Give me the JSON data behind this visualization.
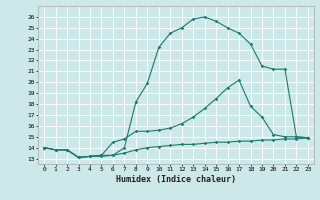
{
  "xlabel": "Humidex (Indice chaleur)",
  "bg_color": "#cce8e8",
  "line_color": "#1a7a6e",
  "grid_color": "#ffffff",
  "xlim": [
    -0.5,
    23.5
  ],
  "ylim": [
    12.5,
    27.0
  ],
  "yticks": [
    13,
    14,
    15,
    16,
    17,
    18,
    19,
    20,
    21,
    22,
    23,
    24,
    25,
    26
  ],
  "xticks": [
    0,
    1,
    2,
    3,
    4,
    5,
    6,
    7,
    8,
    9,
    10,
    11,
    12,
    13,
    14,
    15,
    16,
    17,
    18,
    19,
    20,
    21,
    22,
    23
  ],
  "series1_x": [
    0,
    1,
    2,
    3,
    4,
    5,
    6,
    7,
    8,
    9,
    10,
    11,
    12,
    13,
    14,
    15,
    16,
    17,
    18,
    19,
    20,
    21,
    22,
    23
  ],
  "series1_y": [
    14.0,
    13.8,
    13.8,
    13.1,
    13.2,
    13.2,
    13.3,
    13.5,
    13.8,
    14.0,
    14.1,
    14.2,
    14.3,
    14.3,
    14.4,
    14.5,
    14.5,
    14.6,
    14.6,
    14.7,
    14.7,
    14.8,
    14.8,
    14.9
  ],
  "series2_x": [
    0,
    1,
    2,
    3,
    4,
    5,
    6,
    7,
    8,
    9,
    10,
    11,
    12,
    13,
    14,
    15,
    16,
    17,
    18,
    19,
    20,
    21,
    22,
    23
  ],
  "series2_y": [
    14.0,
    13.8,
    13.8,
    13.1,
    13.2,
    13.3,
    14.5,
    14.8,
    15.5,
    15.5,
    15.6,
    15.8,
    16.2,
    16.8,
    17.6,
    18.5,
    19.5,
    20.2,
    17.8,
    16.8,
    15.2,
    15.0,
    15.0,
    14.9
  ],
  "series3_x": [
    0,
    1,
    2,
    3,
    4,
    5,
    6,
    7,
    8,
    9,
    10,
    11,
    12,
    13,
    14,
    15,
    16,
    17,
    18,
    19,
    20,
    21,
    22,
    23
  ],
  "series3_y": [
    14.0,
    13.8,
    13.8,
    13.1,
    13.2,
    13.3,
    13.3,
    14.0,
    18.2,
    19.9,
    23.2,
    24.5,
    25.0,
    25.8,
    26.0,
    25.6,
    25.0,
    24.5,
    23.5,
    21.5,
    21.2,
    21.2,
    15.0,
    14.9
  ]
}
